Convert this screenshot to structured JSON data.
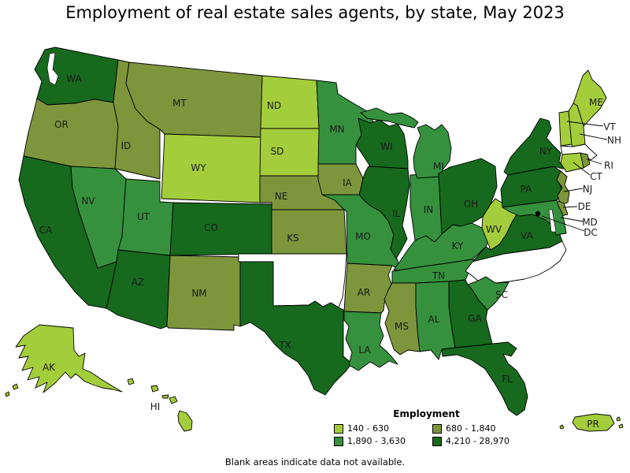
{
  "title": "Employment of real estate sales agents, by state, May 2023",
  "footnote": "Blank areas indicate data not available.",
  "legend": {
    "title": "Employment",
    "categories": [
      {
        "label": "140 - 630",
        "color": "#A4CD3C"
      },
      {
        "label": "680 - 1,840",
        "color": "#7D963C"
      },
      {
        "label": "1,890 - 3,630",
        "color": "#35913D"
      },
      {
        "label": "4,210 - 28,970",
        "color": "#17691D"
      }
    ]
  },
  "map": {
    "blank_color": "#FFFFFF",
    "border_color": "#000000",
    "dc_dot_color": "#000000",
    "states": [
      {
        "code": "WA",
        "category": 3
      },
      {
        "code": "OR",
        "category": 1
      },
      {
        "code": "CA",
        "category": 3
      },
      {
        "code": "NV",
        "category": 2
      },
      {
        "code": "ID",
        "category": 1
      },
      {
        "code": "MT",
        "category": 1
      },
      {
        "code": "WY",
        "category": 0
      },
      {
        "code": "UT",
        "category": 2
      },
      {
        "code": "AZ",
        "category": 3
      },
      {
        "code": "NM",
        "category": 1
      },
      {
        "code": "CO",
        "category": 3
      },
      {
        "code": "ND",
        "category": 0
      },
      {
        "code": "SD",
        "category": 0
      },
      {
        "code": "NE",
        "category": 1
      },
      {
        "code": "KS",
        "category": 1
      },
      {
        "code": "OK",
        "category": null
      },
      {
        "code": "TX",
        "category": 3
      },
      {
        "code": "MN",
        "category": 2
      },
      {
        "code": "IA",
        "category": 1
      },
      {
        "code": "MO",
        "category": 2
      },
      {
        "code": "AR",
        "category": 1
      },
      {
        "code": "LA",
        "category": 2
      },
      {
        "code": "MS",
        "category": 1
      },
      {
        "code": "WI",
        "category": 3
      },
      {
        "code": "IL",
        "category": 3
      },
      {
        "code": "IN",
        "category": 2
      },
      {
        "code": "MI",
        "category": 2
      },
      {
        "code": "OH",
        "category": 3
      },
      {
        "code": "KY",
        "category": 2
      },
      {
        "code": "TN",
        "category": 2
      },
      {
        "code": "AL",
        "category": 2
      },
      {
        "code": "GA",
        "category": 3
      },
      {
        "code": "SC",
        "category": 2
      },
      {
        "code": "FL",
        "category": 3
      },
      {
        "code": "VA",
        "category": 3
      },
      {
        "code": "WV",
        "category": 0
      },
      {
        "code": "NC",
        "category": null
      },
      {
        "code": "PA",
        "category": 3
      },
      {
        "code": "NY",
        "category": 3
      },
      {
        "code": "ME",
        "category": 0
      },
      {
        "code": "VT",
        "category": 0
      },
      {
        "code": "NH",
        "category": 0
      },
      {
        "code": "MA",
        "category": null
      },
      {
        "code": "RI",
        "category": 1
      },
      {
        "code": "CT",
        "category": 0
      },
      {
        "code": "NJ",
        "category": 1
      },
      {
        "code": "DE",
        "category": 1
      },
      {
        "code": "MD",
        "category": 2
      },
      {
        "code": "DC",
        "category": null
      },
      {
        "code": "AK",
        "category": 0
      },
      {
        "code": "HI",
        "category": 0
      },
      {
        "code": "PR",
        "category": 0
      }
    ]
  }
}
